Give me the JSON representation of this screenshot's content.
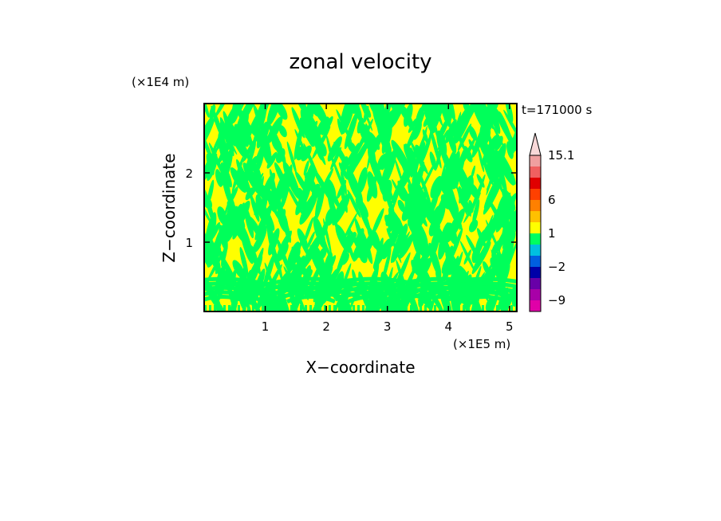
{
  "chart_data": {
    "type": "heatmap",
    "title": "zonal velocity",
    "xlabel": "X−coordinate",
    "ylabel": "Z−coordinate",
    "x_multiplier": "(×1E5 m)",
    "y_multiplier": "(×1E4 m)",
    "time_label": "t=171000 s",
    "xlim": [
      0,
      5.12
    ],
    "ylim": [
      0,
      3.0
    ],
    "x_ticks": [
      1,
      2,
      3,
      4,
      5
    ],
    "x_tick_labels": [
      "1",
      "2",
      "3",
      "4",
      "5"
    ],
    "y_ticks": [
      1,
      2
    ],
    "y_tick_labels": [
      "1",
      "2"
    ],
    "colorbar": {
      "levels": [
        -12,
        -9,
        -6,
        -4,
        -2,
        -1,
        0,
        1,
        2,
        4,
        6,
        8,
        10,
        12.5,
        15.1
      ],
      "colors": [
        "#e000a8",
        "#a800a8",
        "#6800a8",
        "#0000a8",
        "#0060e0",
        "#00c0e0",
        "#00ff60",
        "#ffff00",
        "#ffc000",
        "#ff8000",
        "#ff4000",
        "#e00000",
        "#f06060",
        "#f0a0a0",
        "#f8d8d8"
      ],
      "labels": [
        "15.1",
        "6",
        "1",
        "−2",
        "−9"
      ],
      "label_values": [
        15.1,
        6,
        1,
        -2,
        -9
      ],
      "over_arrow": true
    },
    "field_colors": {
      "positive": "#ffff00",
      "negative": "#00ff5a"
    }
  }
}
